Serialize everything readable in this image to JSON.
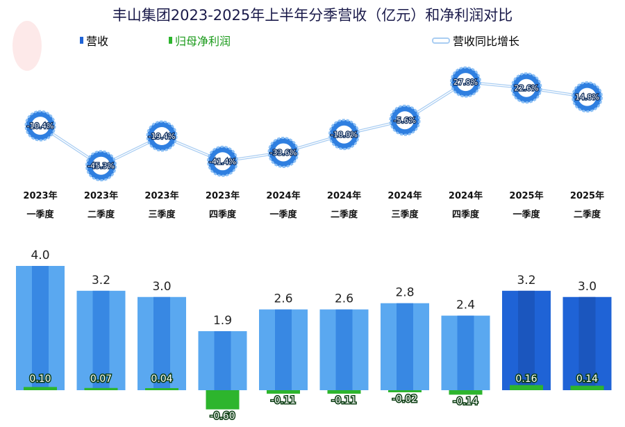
{
  "title": "丰山集团2023-2025年上半年分季营收（亿元）和净利润对比",
  "legend": {
    "revenue": "营收",
    "profit": "归母净利润",
    "growth": "营收同比增长"
  },
  "colors": {
    "revenue": "#5aa8f0",
    "revenue_dark": "#1f63d6",
    "profit": "#2db52d",
    "line": "#a9cdf2",
    "title": "#1a1a4a"
  },
  "chart_data": {
    "type": "bar+line",
    "title": "丰山集团2023-2025年上半年分季营收（亿元）和净利润对比",
    "categories": [
      [
        "2023年",
        "一季度"
      ],
      [
        "2023年",
        "二季度"
      ],
      [
        "2023年",
        "三季度"
      ],
      [
        "2023年",
        "四季度"
      ],
      [
        "2024年",
        "一季度"
      ],
      [
        "2024年",
        "二季度"
      ],
      [
        "2024年",
        "三季度"
      ],
      [
        "2024年",
        "四季度"
      ],
      [
        "2025年",
        "一季度"
      ],
      [
        "2025年",
        "二季度"
      ]
    ],
    "series": [
      {
        "name": "营收",
        "type": "bar",
        "values": [
          4.0,
          3.2,
          3.0,
          1.9,
          2.6,
          2.6,
          2.8,
          2.4,
          3.2,
          3.0
        ],
        "labels": [
          "4.0",
          "3.2",
          "3.0",
          "1.9",
          "2.6",
          "2.6",
          "2.8",
          "2.4",
          "3.2",
          "3.0"
        ]
      },
      {
        "name": "归母净利润",
        "type": "bar",
        "values": [
          0.1,
          0.07,
          0.04,
          -0.6,
          -0.11,
          -0.11,
          -0.02,
          -0.14,
          0.16,
          0.14
        ],
        "labels": [
          "0.10",
          "0.07",
          "0.04",
          "-0.60",
          "-0.11",
          "-0.11",
          "-0.02",
          "-0.14",
          "0.16",
          "0.14"
        ]
      },
      {
        "name": "营收同比增长",
        "type": "line",
        "unit": "%",
        "values": [
          -10.4,
          -45.3,
          -19.4,
          -41.4,
          -33.6,
          -18.0,
          -5.6,
          27.8,
          22.6,
          14.8
        ],
        "labels": [
          "-10.4%",
          "-45.3%",
          "-19.4%",
          "-41.4%",
          "-33.6%",
          "-18.0%",
          "-5.6%",
          "27.8%",
          "22.6%",
          "14.8%"
        ]
      }
    ],
    "legend_position": "top"
  }
}
